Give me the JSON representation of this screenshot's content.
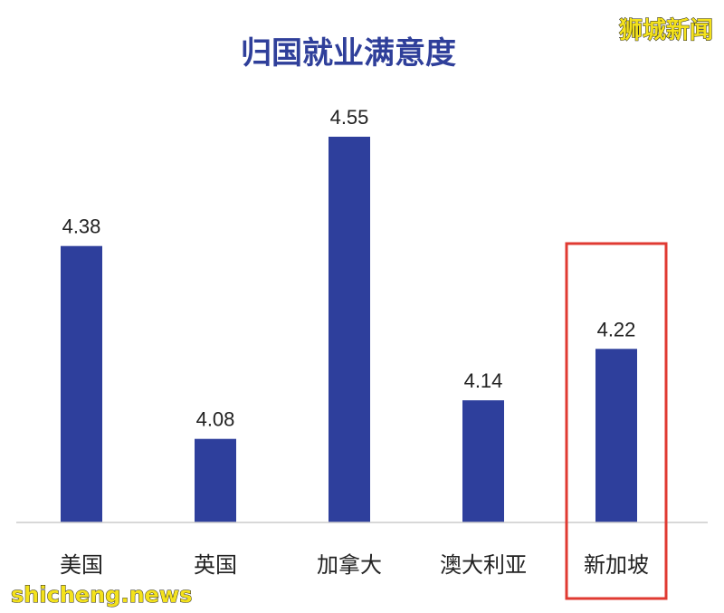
{
  "watermarks": {
    "top_right": "狮城新闻",
    "bottom_left": "shicheng.news"
  },
  "colors": {
    "bar": "#2e3f9c",
    "title": "#2f3f9a",
    "highlight_box": "#e03a32",
    "baseline": "#cccccc"
  },
  "chart_data": {
    "type": "bar",
    "title": "归国就业满意度",
    "categories": [
      "美国",
      "英国",
      "加拿大",
      "澳大利亚",
      "新加坡"
    ],
    "values": [
      4.38,
      4.08,
      4.55,
      4.14,
      4.22
    ],
    "value_labels": [
      "4.38",
      "4.08",
      "4.55",
      "4.14",
      "4.22"
    ],
    "ylim": [
      3.95,
      4.6
    ],
    "grid": false,
    "legend": "none",
    "highlight_category": "新加坡"
  }
}
